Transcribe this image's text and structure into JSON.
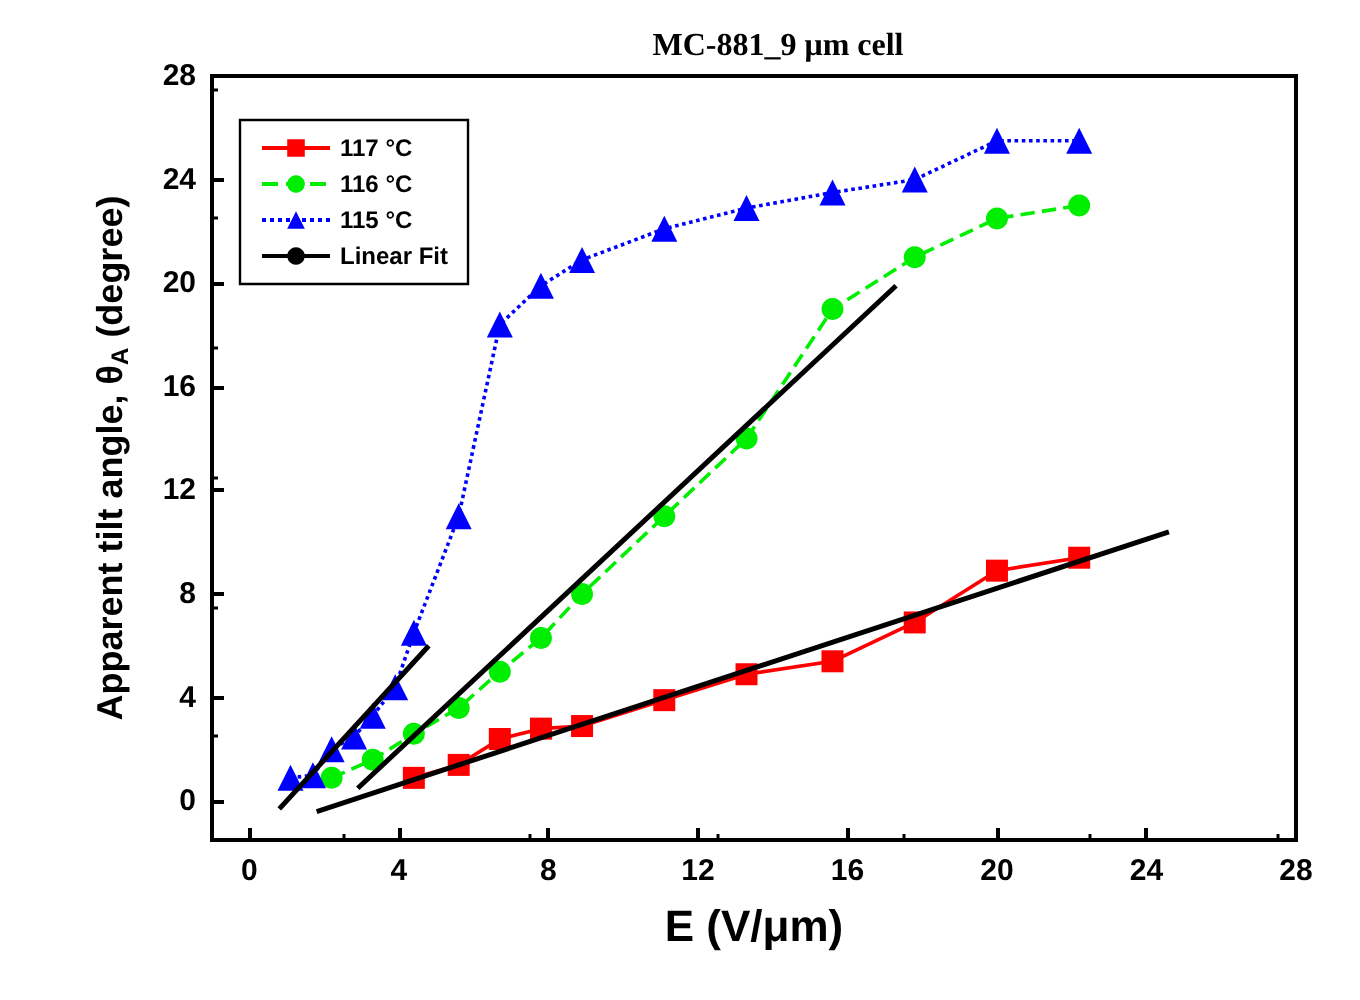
{
  "chart_data": {
    "type": "line",
    "title": "MC-881_9 μm cell",
    "xlabel": "E (V/μm)",
    "ylabel": "Apparent tilt angle, θ$_{A}$ (degree)",
    "xlim": [
      -1,
      28
    ],
    "xticks": [
      0,
      4,
      8,
      12,
      16,
      20,
      24,
      28
    ],
    "ylim": [
      -1.5,
      28
    ],
    "yticks": [
      0,
      4,
      8,
      12,
      16,
      20,
      24,
      28
    ],
    "grid": false,
    "legend": "top left",
    "series": [
      {
        "name": "117 °C",
        "color": "#ff0000",
        "marker": "square",
        "line_style": "solid",
        "x": [
          4.4,
          5.6,
          6.7,
          7.8,
          8.9,
          11.1,
          13.3,
          15.6,
          17.8,
          20,
          22.2
        ],
        "values": [
          0.9,
          1.4,
          2.4,
          2.8,
          2.9,
          3.9,
          4.9,
          5.4,
          6.9,
          8.9,
          9.4
        ]
      },
      {
        "name": "116 °C",
        "color": "#00ee00",
        "marker": "circle",
        "line_style": "dashed",
        "x": [
          2.2,
          3.3,
          4.4,
          5.6,
          6.7,
          7.8,
          8.9,
          11.1,
          13.3,
          15.6,
          17.8,
          20,
          22.2
        ],
        "values": [
          0.9,
          1.6,
          2.6,
          3.6,
          5,
          6.3,
          8,
          11,
          14,
          19,
          21,
          22.5,
          23
        ]
      },
      {
        "name": "115 °C",
        "color": "#0000ff",
        "marker": "triangle",
        "line_style": "dotted",
        "x": [
          1.1,
          1.7,
          2.2,
          2.8,
          3.3,
          3.9,
          4.4,
          5.6,
          6.7,
          7.8,
          8.9,
          11.1,
          13.3,
          15.6,
          17.8,
          20,
          22.2
        ],
        "values": [
          0.9,
          1.0,
          2.0,
          2.5,
          3.3,
          4.4,
          6.5,
          11,
          18.4,
          19.9,
          20.9,
          22.1,
          22.9,
          23.5,
          24,
          25.5,
          25.5
        ]
      },
      {
        "name": "Linear Fit",
        "color": "#000000",
        "marker": "none",
        "line_style": "solid",
        "x": [
          0.8,
          4.8
        ],
        "values": [
          -0.3,
          6.0
        ]
      },
      {
        "color": "#000000",
        "marker": "none",
        "line_style": "solid",
        "x": [
          2.9,
          17.3
        ],
        "values": [
          0.5,
          19.9
        ]
      },
      {
        "color": "#000000",
        "marker": "none",
        "line_style": "solid",
        "x": [
          1.8,
          24.6
        ],
        "values": [
          -0.4,
          10.4
        ]
      }
    ]
  }
}
